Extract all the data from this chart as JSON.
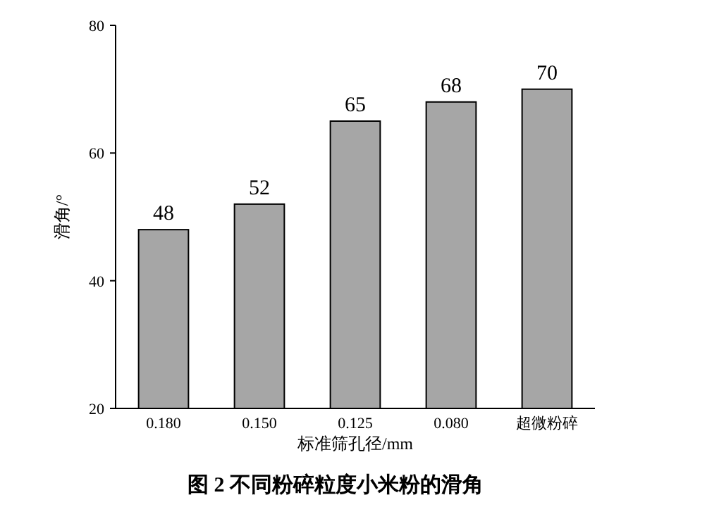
{
  "chart_data": {
    "type": "bar",
    "title": "**图 2  不同粉碎粒度小米粉的滑角**",
    "xlabel": "标准筛孔径/mm",
    "ylabel": "滑角/°",
    "categories": [
      "0.180",
      "0.150",
      "0.125",
      "0.080",
      "超微粉碎"
    ],
    "values": [
      48,
      52,
      65,
      68,
      70
    ],
    "color": "#a6a6a6",
    "ylim": [
      20,
      80
    ],
    "yticks": [
      20,
      40,
      60,
      80
    ],
    "data_labels": true,
    "grid": false
  }
}
